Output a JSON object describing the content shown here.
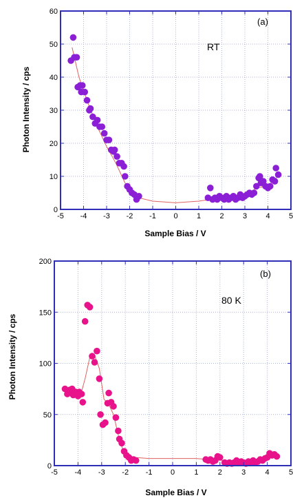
{
  "chart_data": [
    {
      "type": "scatter",
      "panel_label": "(a)",
      "annotation": "RT",
      "xlabel": "Sample Bias / V",
      "ylabel": "Photon Intensity / cps",
      "xlim": [
        -5,
        5
      ],
      "ylim": [
        0,
        60
      ],
      "xticks": [
        -5,
        -4,
        -3,
        -2,
        -1,
        0,
        1,
        2,
        3,
        4,
        5
      ],
      "yticks": [
        0,
        10,
        20,
        30,
        40,
        50,
        60
      ],
      "grid": true,
      "colors": {
        "marker": "#8b1fd6",
        "curve": "#e06060",
        "frame": "#2d2db8",
        "grid": "#a8b4d8"
      },
      "points": [
        [
          -4.55,
          45
        ],
        [
          -4.45,
          52
        ],
        [
          -4.4,
          46
        ],
        [
          -4.3,
          46
        ],
        [
          -4.25,
          37
        ],
        [
          -4.15,
          37.5
        ],
        [
          -4.1,
          35.5
        ],
        [
          -4.05,
          37.5
        ],
        [
          -3.95,
          35.5
        ],
        [
          -3.85,
          33
        ],
        [
          -3.75,
          30
        ],
        [
          -3.7,
          30.5
        ],
        [
          -3.6,
          28
        ],
        [
          -3.5,
          26
        ],
        [
          -3.4,
          27
        ],
        [
          -3.3,
          25
        ],
        [
          -3.2,
          25
        ],
        [
          -3.1,
          23
        ],
        [
          -3.0,
          21
        ],
        [
          -2.9,
          21
        ],
        [
          -2.8,
          18
        ],
        [
          -2.7,
          17.5
        ],
        [
          -2.65,
          18
        ],
        [
          -2.55,
          16
        ],
        [
          -2.45,
          14
        ],
        [
          -2.35,
          14
        ],
        [
          -2.25,
          13
        ],
        [
          -2.2,
          10
        ],
        [
          -2.1,
          7
        ],
        [
          -2.0,
          6
        ],
        [
          -1.9,
          5
        ],
        [
          -1.8,
          4.5
        ],
        [
          -1.7,
          3
        ],
        [
          -1.6,
          4
        ],
        [
          1.4,
          3.5
        ],
        [
          1.5,
          6.5
        ],
        [
          1.6,
          3
        ],
        [
          1.7,
          3.5
        ],
        [
          1.8,
          3
        ],
        [
          1.9,
          4
        ],
        [
          2.0,
          3.5
        ],
        [
          2.1,
          3
        ],
        [
          2.2,
          4
        ],
        [
          2.3,
          3
        ],
        [
          2.4,
          3.5
        ],
        [
          2.5,
          4
        ],
        [
          2.6,
          3
        ],
        [
          2.7,
          3.5
        ],
        [
          2.8,
          4.5
        ],
        [
          2.9,
          3.5
        ],
        [
          3.0,
          4
        ],
        [
          3.1,
          4.5
        ],
        [
          3.2,
          5
        ],
        [
          3.3,
          4.5
        ],
        [
          3.4,
          5
        ],
        [
          3.5,
          7
        ],
        [
          3.6,
          9.5
        ],
        [
          3.65,
          10
        ],
        [
          3.7,
          8
        ],
        [
          3.8,
          8.5
        ],
        [
          3.9,
          7
        ],
        [
          4.0,
          6.5
        ],
        [
          4.1,
          7
        ],
        [
          4.2,
          9
        ],
        [
          4.3,
          8.5
        ],
        [
          4.35,
          12.5
        ],
        [
          4.45,
          10.5
        ]
      ],
      "fit_curve": [
        [
          -4.5,
          49
        ],
        [
          -4.2,
          40
        ],
        [
          -3.8,
          32
        ],
        [
          -3.4,
          25
        ],
        [
          -3.0,
          19
        ],
        [
          -2.6,
          14
        ],
        [
          -2.2,
          8
        ],
        [
          -1.9,
          5
        ],
        [
          -1.6,
          3.5
        ],
        [
          -1.0,
          2.5
        ],
        [
          0,
          2
        ],
        [
          1.0,
          2.5
        ],
        [
          1.5,
          3
        ],
        [
          2.0,
          3.2
        ],
        [
          2.5,
          3.5
        ],
        [
          3.0,
          4
        ],
        [
          3.5,
          6.5
        ],
        [
          4.0,
          7
        ],
        [
          4.5,
          10.5
        ]
      ]
    },
    {
      "type": "scatter",
      "panel_label": "(b)",
      "annotation": "80 K",
      "xlabel": "Sample Bias / V",
      "ylabel": "Photon Intensity / cps",
      "xlim": [
        -5,
        5
      ],
      "ylim": [
        0,
        200
      ],
      "xticks": [
        -5,
        -4,
        -3,
        -2,
        -1,
        0,
        1,
        2,
        3,
        4,
        5
      ],
      "yticks": [
        0,
        50,
        100,
        150,
        200
      ],
      "grid": true,
      "colors": {
        "marker": "#e8128a",
        "curve": "#e06060",
        "frame": "#2d2db8",
        "grid": "#a8b4d8"
      },
      "points": [
        [
          -4.55,
          75
        ],
        [
          -4.45,
          70
        ],
        [
          -4.35,
          74
        ],
        [
          -4.25,
          75
        ],
        [
          -4.2,
          69
        ],
        [
          -4.1,
          72
        ],
        [
          -4.0,
          68
        ],
        [
          -3.95,
          72
        ],
        [
          -3.85,
          70
        ],
        [
          -3.8,
          62
        ],
        [
          -3.7,
          141
        ],
        [
          -3.6,
          157
        ],
        [
          -3.5,
          155
        ],
        [
          -3.4,
          107
        ],
        [
          -3.3,
          101
        ],
        [
          -3.2,
          112
        ],
        [
          -3.1,
          85
        ],
        [
          -3.05,
          50
        ],
        [
          -2.95,
          40
        ],
        [
          -2.85,
          42
        ],
        [
          -2.75,
          61
        ],
        [
          -2.7,
          71
        ],
        [
          -2.6,
          62
        ],
        [
          -2.5,
          58
        ],
        [
          -2.4,
          47
        ],
        [
          -2.3,
          34
        ],
        [
          -2.25,
          26
        ],
        [
          -2.15,
          22
        ],
        [
          -2.05,
          14
        ],
        [
          -1.95,
          10
        ],
        [
          -1.85,
          8
        ],
        [
          -1.75,
          5
        ],
        [
          -1.65,
          6
        ],
        [
          -1.55,
          5
        ],
        [
          1.4,
          6
        ],
        [
          1.5,
          5
        ],
        [
          1.6,
          6
        ],
        [
          1.7,
          4
        ],
        [
          1.8,
          5
        ],
        [
          1.9,
          9
        ],
        [
          2.0,
          8
        ],
        [
          2.2,
          3
        ],
        [
          2.3,
          2
        ],
        [
          2.4,
          3
        ],
        [
          2.5,
          2
        ],
        [
          2.6,
          3
        ],
        [
          2.7,
          5
        ],
        [
          2.8,
          3
        ],
        [
          2.9,
          4
        ],
        [
          3.0,
          3
        ],
        [
          3.1,
          2
        ],
        [
          3.2,
          4
        ],
        [
          3.3,
          3
        ],
        [
          3.4,
          5
        ],
        [
          3.5,
          3
        ],
        [
          3.6,
          4
        ],
        [
          3.7,
          6
        ],
        [
          3.8,
          5
        ],
        [
          3.9,
          7
        ],
        [
          4.0,
          8
        ],
        [
          4.1,
          12
        ],
        [
          4.2,
          10
        ],
        [
          4.3,
          11
        ],
        [
          4.4,
          9
        ]
      ],
      "fit_curve": [
        [
          -4.5,
          72
        ],
        [
          -4.2,
          70
        ],
        [
          -3.9,
          68
        ],
        [
          -3.7,
          85
        ],
        [
          -3.5,
          106
        ],
        [
          -3.3,
          108
        ],
        [
          -3.1,
          95
        ],
        [
          -2.9,
          65
        ],
        [
          -2.7,
          60
        ],
        [
          -2.5,
          50
        ],
        [
          -2.3,
          30
        ],
        [
          -2.1,
          15
        ],
        [
          -1.9,
          10
        ],
        [
          -1.6,
          8
        ],
        [
          -1.0,
          7
        ],
        [
          0,
          7
        ],
        [
          1.0,
          7
        ],
        [
          1.5,
          6
        ],
        [
          1.9,
          8
        ],
        [
          2.2,
          3
        ],
        [
          3.0,
          3
        ],
        [
          3.5,
          4
        ],
        [
          4.0,
          7
        ],
        [
          4.4,
          10
        ]
      ]
    }
  ]
}
